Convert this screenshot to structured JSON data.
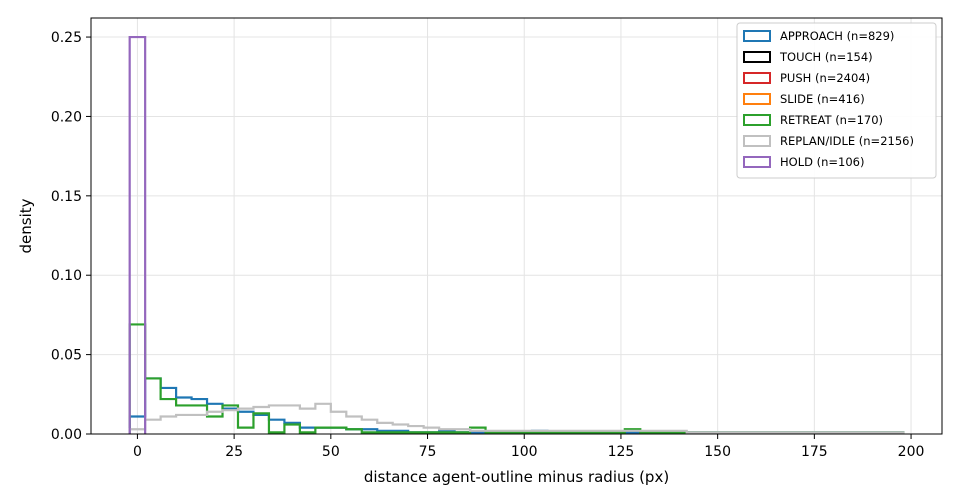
{
  "chart_data": {
    "type": "step-histogram",
    "xlabel": "distance agent-outline minus radius (px)",
    "ylabel": "density",
    "xlim": [
      -12,
      208
    ],
    "ylim": [
      0,
      0.262
    ],
    "xticks": [
      0,
      25,
      50,
      75,
      100,
      125,
      150,
      175,
      200
    ],
    "yticks": [
      0.0,
      0.05,
      0.1,
      0.15,
      0.2,
      0.25
    ],
    "grid": true,
    "legend_position": "top-right",
    "bins": [
      -2,
      2,
      6,
      10,
      14,
      18,
      22,
      26,
      30,
      34,
      38,
      42,
      46,
      50,
      54,
      58,
      62,
      66,
      70,
      74,
      78,
      82,
      86,
      90,
      94,
      98,
      102,
      106,
      110,
      114,
      118,
      122,
      126,
      130,
      134,
      138,
      142,
      146,
      150,
      154,
      158,
      162,
      166,
      170,
      174,
      178,
      182,
      186,
      190,
      194,
      198
    ],
    "series": [
      {
        "name": "APPROACH (n=829)",
        "color": "#1f77b4",
        "values": [
          0.011,
          0.035,
          0.029,
          0.023,
          0.022,
          0.019,
          0.016,
          0.014,
          0.012,
          0.009,
          0.007,
          0.004,
          0.004,
          0.004,
          0.003,
          0.003,
          0.002,
          0.002,
          0.001,
          0.001,
          0.002,
          0.001,
          0.001,
          0.001,
          0.001,
          0.001,
          0.002,
          0.001,
          0.001,
          0.001,
          0.001,
          0.001,
          0.001,
          0.001,
          0.001,
          0.001,
          0.001,
          0.001,
          0.001,
          0.001,
          0.001,
          0.001,
          0.001,
          0.001,
          0.001,
          0.001,
          0.001,
          0.001,
          0.001,
          0.001
        ]
      },
      {
        "name": "TOUCH (n=154)",
        "color": "#000000",
        "values": []
      },
      {
        "name": "PUSH (n=2404)",
        "color": "#d62728",
        "values": []
      },
      {
        "name": "SLIDE (n=416)",
        "color": "#ff7f0e",
        "values": []
      },
      {
        "name": "RETREAT (n=170)",
        "color": "#2ca02c",
        "values": [
          0.069,
          0.035,
          0.022,
          0.018,
          0.018,
          0.011,
          0.018,
          0.004,
          0.013,
          0.001,
          0.006,
          0.001,
          0.004,
          0.004,
          0.003,
          0.001,
          0.001,
          0.001,
          0.001,
          0.001,
          0.001,
          0.001,
          0.004,
          0.001,
          0.001,
          0.001,
          0.001,
          0.001,
          0.001,
          0.001,
          0.001,
          0.001,
          0.003,
          0.001,
          0.001,
          0.001,
          0.001,
          0.001,
          0.001,
          0.001,
          0.001,
          0.001,
          0.001,
          0.001,
          0.001,
          0.001,
          0.001,
          0.001,
          0.001,
          0.001
        ]
      },
      {
        "name": "REPLAN/IDLE (n=2156)",
        "color": "#c0c0c0",
        "values": [
          0.003,
          0.009,
          0.011,
          0.012,
          0.012,
          0.014,
          0.015,
          0.016,
          0.017,
          0.018,
          0.018,
          0.016,
          0.019,
          0.014,
          0.011,
          0.009,
          0.007,
          0.006,
          0.005,
          0.004,
          0.003,
          0.003,
          0.002,
          0.002,
          0.002,
          0.002,
          0.002,
          0.002,
          0.002,
          0.002,
          0.002,
          0.002,
          0.002,
          0.002,
          0.002,
          0.002,
          0.001,
          0.001,
          0.001,
          0.001,
          0.001,
          0.001,
          0.001,
          0.001,
          0.001,
          0.001,
          0.001,
          0.001,
          0.001,
          0.001
        ]
      },
      {
        "name": "HOLD (n=106)",
        "color": "#9467bd",
        "values": [
          0.25
        ]
      }
    ]
  }
}
